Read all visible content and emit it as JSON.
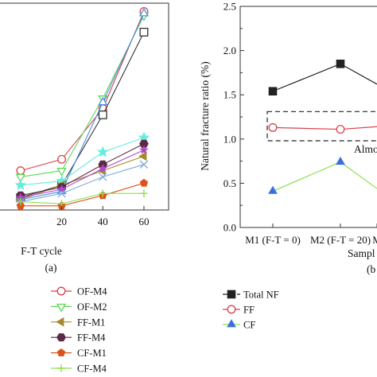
{
  "chart_data": [
    {
      "id": "a",
      "type": "line",
      "panel_label": "(a)",
      "title": "",
      "xlabel": "F-T cycle",
      "ylabel": "",
      "x": [
        0,
        20,
        40,
        60
      ],
      "xticks": [
        "20",
        "40",
        "60"
      ],
      "xlim": [
        -10,
        72
      ],
      "ylim": [
        0,
        10
      ],
      "grid": false,
      "legend_position": "below",
      "series": [
        {
          "name": "OF-M4",
          "color": "#d9414d",
          "marker": "circle-open",
          "values": [
            1.9,
            2.45,
            4.9,
            9.6
          ]
        },
        {
          "name": "OF-M2",
          "color": "#5fd85b",
          "marker": "triangle-down-open",
          "values": [
            1.6,
            1.9,
            5.4,
            9.4
          ]
        },
        {
          "name": "",
          "color": "#333333",
          "marker": "square-open",
          "values": [
            0.6,
            1.2,
            4.6,
            8.6
          ]
        },
        {
          "name": "",
          "color": "#4a8fe0",
          "marker": "triangle-up-open",
          "values": [
            0.5,
            0.9,
            5.2,
            9.5
          ]
        },
        {
          "name": "",
          "color": "#66eedd",
          "marker": "star",
          "values": [
            1.2,
            1.4,
            2.8,
            3.5
          ]
        },
        {
          "name": "FF-M1",
          "color": "#a58a2a",
          "marker": "triangle-left",
          "values": [
            0.5,
            1.2,
            1.9,
            2.6
          ]
        },
        {
          "name": "FF-M4",
          "color": "#5a2a46",
          "marker": "hexagon",
          "values": [
            0.7,
            1.1,
            2.2,
            3.2
          ]
        },
        {
          "name": "",
          "color": "#b04ac8",
          "marker": "star-small",
          "values": [
            0.6,
            1.0,
            2.0,
            2.9
          ]
        },
        {
          "name": "",
          "color": "#7aa9dc",
          "marker": "x",
          "values": [
            0.4,
            0.8,
            1.6,
            2.2
          ]
        },
        {
          "name": "CF-M1",
          "color": "#e0501c",
          "marker": "pentagon",
          "values": [
            0.2,
            0.2,
            0.7,
            1.3
          ]
        },
        {
          "name": "CF-M4",
          "color": "#8ee04c",
          "marker": "plus",
          "values": [
            0.4,
            0.3,
            0.8,
            0.8
          ]
        }
      ]
    },
    {
      "id": "b",
      "type": "line",
      "panel_label": "(b",
      "title": "",
      "xlabel": "Sampl",
      "ylabel": "Natural fracture ratio (%)",
      "categories": [
        "M1 (F-T = 0)",
        "M2 (F-T = 20)",
        "M"
      ],
      "yticks": [
        "0.0",
        "0.5",
        "1.0",
        "1.5",
        "2.0",
        "2.5"
      ],
      "ylim": [
        0,
        2.5
      ],
      "grid": false,
      "legend_position": "below",
      "annotation": "Almo",
      "series": [
        {
          "name": "Total NF",
          "color": "#222222",
          "marker": "square",
          "values": [
            1.54,
            1.85,
            1.62
          ]
        },
        {
          "name": "FF",
          "color": "#d9414d",
          "marker": "circle-open",
          "values": [
            1.13,
            1.11,
            1.14
          ]
        },
        {
          "name": "CF",
          "color": "#8ee04c",
          "marker_color": "#3b6fe0",
          "marker": "triangle-up",
          "values": [
            0.41,
            0.74,
            0.44
          ]
        }
      ]
    }
  ]
}
